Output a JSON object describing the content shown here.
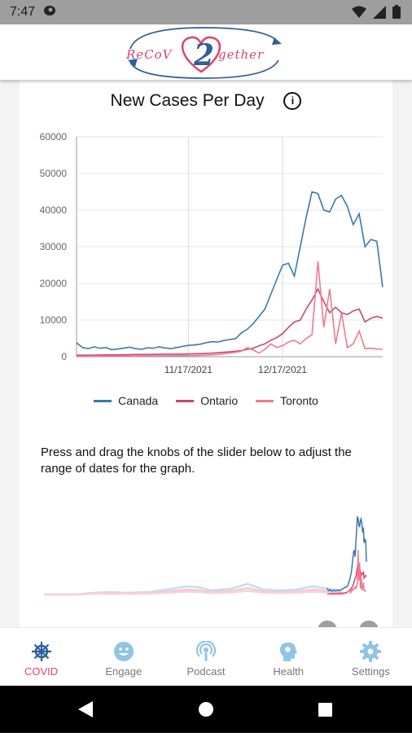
{
  "status_bar": {
    "time": "7:47"
  },
  "app": {
    "logo_left": "ReCoV",
    "logo_number": "2",
    "logo_right": "gether"
  },
  "chart": {
    "title": "New Cases Per Day",
    "info_icon": "info-icon"
  },
  "chart_data": {
    "type": "line",
    "title": "New Cases Per Day",
    "xlabel": "",
    "ylabel": "",
    "ylim": [
      0,
      60000
    ],
    "yticks": [
      0,
      10000,
      20000,
      30000,
      40000,
      50000,
      60000
    ],
    "xticks": [
      "11/17/2021",
      "12/17/2021"
    ],
    "grid": true,
    "legend_position": "bottom",
    "series": [
      {
        "name": "Canada",
        "color": "#3a78b0",
        "points": [
          [
            0,
            3800
          ],
          [
            2,
            2500
          ],
          [
            4,
            2200
          ],
          [
            6,
            2700
          ],
          [
            8,
            2300
          ],
          [
            10,
            2500
          ],
          [
            12,
            1900
          ],
          [
            14,
            2100
          ],
          [
            16,
            2300
          ],
          [
            18,
            2600
          ],
          [
            20,
            2200
          ],
          [
            22,
            2000
          ],
          [
            24,
            2400
          ],
          [
            26,
            2300
          ],
          [
            28,
            2700
          ],
          [
            30,
            2400
          ],
          [
            32,
            2200
          ],
          [
            34,
            2500
          ],
          [
            36,
            2800
          ],
          [
            38,
            3100
          ],
          [
            40,
            3200
          ],
          [
            42,
            3400
          ],
          [
            44,
            3800
          ],
          [
            46,
            4100
          ],
          [
            48,
            4000
          ],
          [
            50,
            4400
          ],
          [
            52,
            4700
          ],
          [
            54,
            4900
          ],
          [
            56,
            6500
          ],
          [
            58,
            7500
          ],
          [
            60,
            9000
          ],
          [
            62,
            11000
          ],
          [
            64,
            13000
          ],
          [
            66,
            17000
          ],
          [
            68,
            21000
          ],
          [
            70,
            25000
          ],
          [
            72,
            25500
          ],
          [
            74,
            22000
          ],
          [
            76,
            30000
          ],
          [
            78,
            38000
          ],
          [
            80,
            45000
          ],
          [
            82,
            44500
          ],
          [
            84,
            40000
          ],
          [
            86,
            39500
          ],
          [
            88,
            43000
          ],
          [
            90,
            44000
          ],
          [
            92,
            41000
          ],
          [
            94,
            36000
          ],
          [
            96,
            39000
          ],
          [
            98,
            30000
          ],
          [
            100,
            32000
          ],
          [
            102,
            31500
          ],
          [
            104,
            19000
          ]
        ]
      },
      {
        "name": "Ontario",
        "color": "#c9486e",
        "points": [
          [
            0,
            400
          ],
          [
            5,
            400
          ],
          [
            10,
            500
          ],
          [
            15,
            500
          ],
          [
            20,
            600
          ],
          [
            25,
            600
          ],
          [
            30,
            700
          ],
          [
            35,
            700
          ],
          [
            40,
            800
          ],
          [
            45,
            900
          ],
          [
            50,
            1200
          ],
          [
            52,
            1300
          ],
          [
            54,
            1500
          ],
          [
            56,
            1700
          ],
          [
            58,
            2000
          ],
          [
            60,
            2300
          ],
          [
            62,
            3000
          ],
          [
            64,
            3500
          ],
          [
            66,
            4500
          ],
          [
            68,
            5200
          ],
          [
            70,
            6300
          ],
          [
            72,
            8000
          ],
          [
            74,
            9500
          ],
          [
            76,
            10000
          ],
          [
            78,
            13000
          ],
          [
            80,
            15500
          ],
          [
            82,
            18500
          ],
          [
            84,
            15000
          ],
          [
            86,
            12000
          ],
          [
            88,
            13500
          ],
          [
            90,
            12000
          ],
          [
            92,
            11500
          ],
          [
            94,
            12500
          ],
          [
            96,
            13000
          ],
          [
            98,
            9500
          ],
          [
            100,
            10500
          ],
          [
            102,
            11000
          ],
          [
            104,
            10500
          ]
        ]
      },
      {
        "name": "Toronto",
        "color": "#f07a8c",
        "points": [
          [
            0,
            100
          ],
          [
            10,
            150
          ],
          [
            20,
            200
          ],
          [
            30,
            250
          ],
          [
            40,
            300
          ],
          [
            46,
            500
          ],
          [
            48,
            600
          ],
          [
            50,
            800
          ],
          [
            52,
            1000
          ],
          [
            54,
            1200
          ],
          [
            56,
            1500
          ],
          [
            58,
            2500
          ],
          [
            60,
            1800
          ],
          [
            62,
            1000
          ],
          [
            64,
            2000
          ],
          [
            66,
            3500
          ],
          [
            68,
            2500
          ],
          [
            70,
            3000
          ],
          [
            72,
            4000
          ],
          [
            74,
            4500
          ],
          [
            76,
            3500
          ],
          [
            78,
            5000
          ],
          [
            80,
            6000
          ],
          [
            82,
            26000
          ],
          [
            84,
            8000
          ],
          [
            86,
            18500
          ],
          [
            88,
            3500
          ],
          [
            90,
            12000
          ],
          [
            92,
            2500
          ],
          [
            94,
            3500
          ],
          [
            96,
            7000
          ],
          [
            98,
            2200
          ],
          [
            100,
            2300
          ],
          [
            102,
            2100
          ],
          [
            104,
            2000
          ]
        ]
      }
    ]
  },
  "legend": {
    "canada": "Canada",
    "ontario": "Ontario",
    "toronto": "Toronto"
  },
  "instruction_text": "Press and drag the knobs of the slider below to adjust the range of dates for the graph.",
  "bottom_nav": [
    {
      "label": "COVID",
      "icon": "ship-wheel-icon",
      "active": true
    },
    {
      "label": "Engage",
      "icon": "smile-icon",
      "active": false
    },
    {
      "label": "Podcast",
      "icon": "podcast-icon",
      "active": false
    },
    {
      "label": "Health",
      "icon": "head-icon",
      "active": false
    },
    {
      "label": "Settings",
      "icon": "gear-icon",
      "active": false
    }
  ],
  "colors": {
    "accent": "#e0426a",
    "nav_inactive": "#90c4e6",
    "canada": "#3a78b0",
    "ontario": "#c9486e",
    "toronto": "#f07a8c"
  }
}
